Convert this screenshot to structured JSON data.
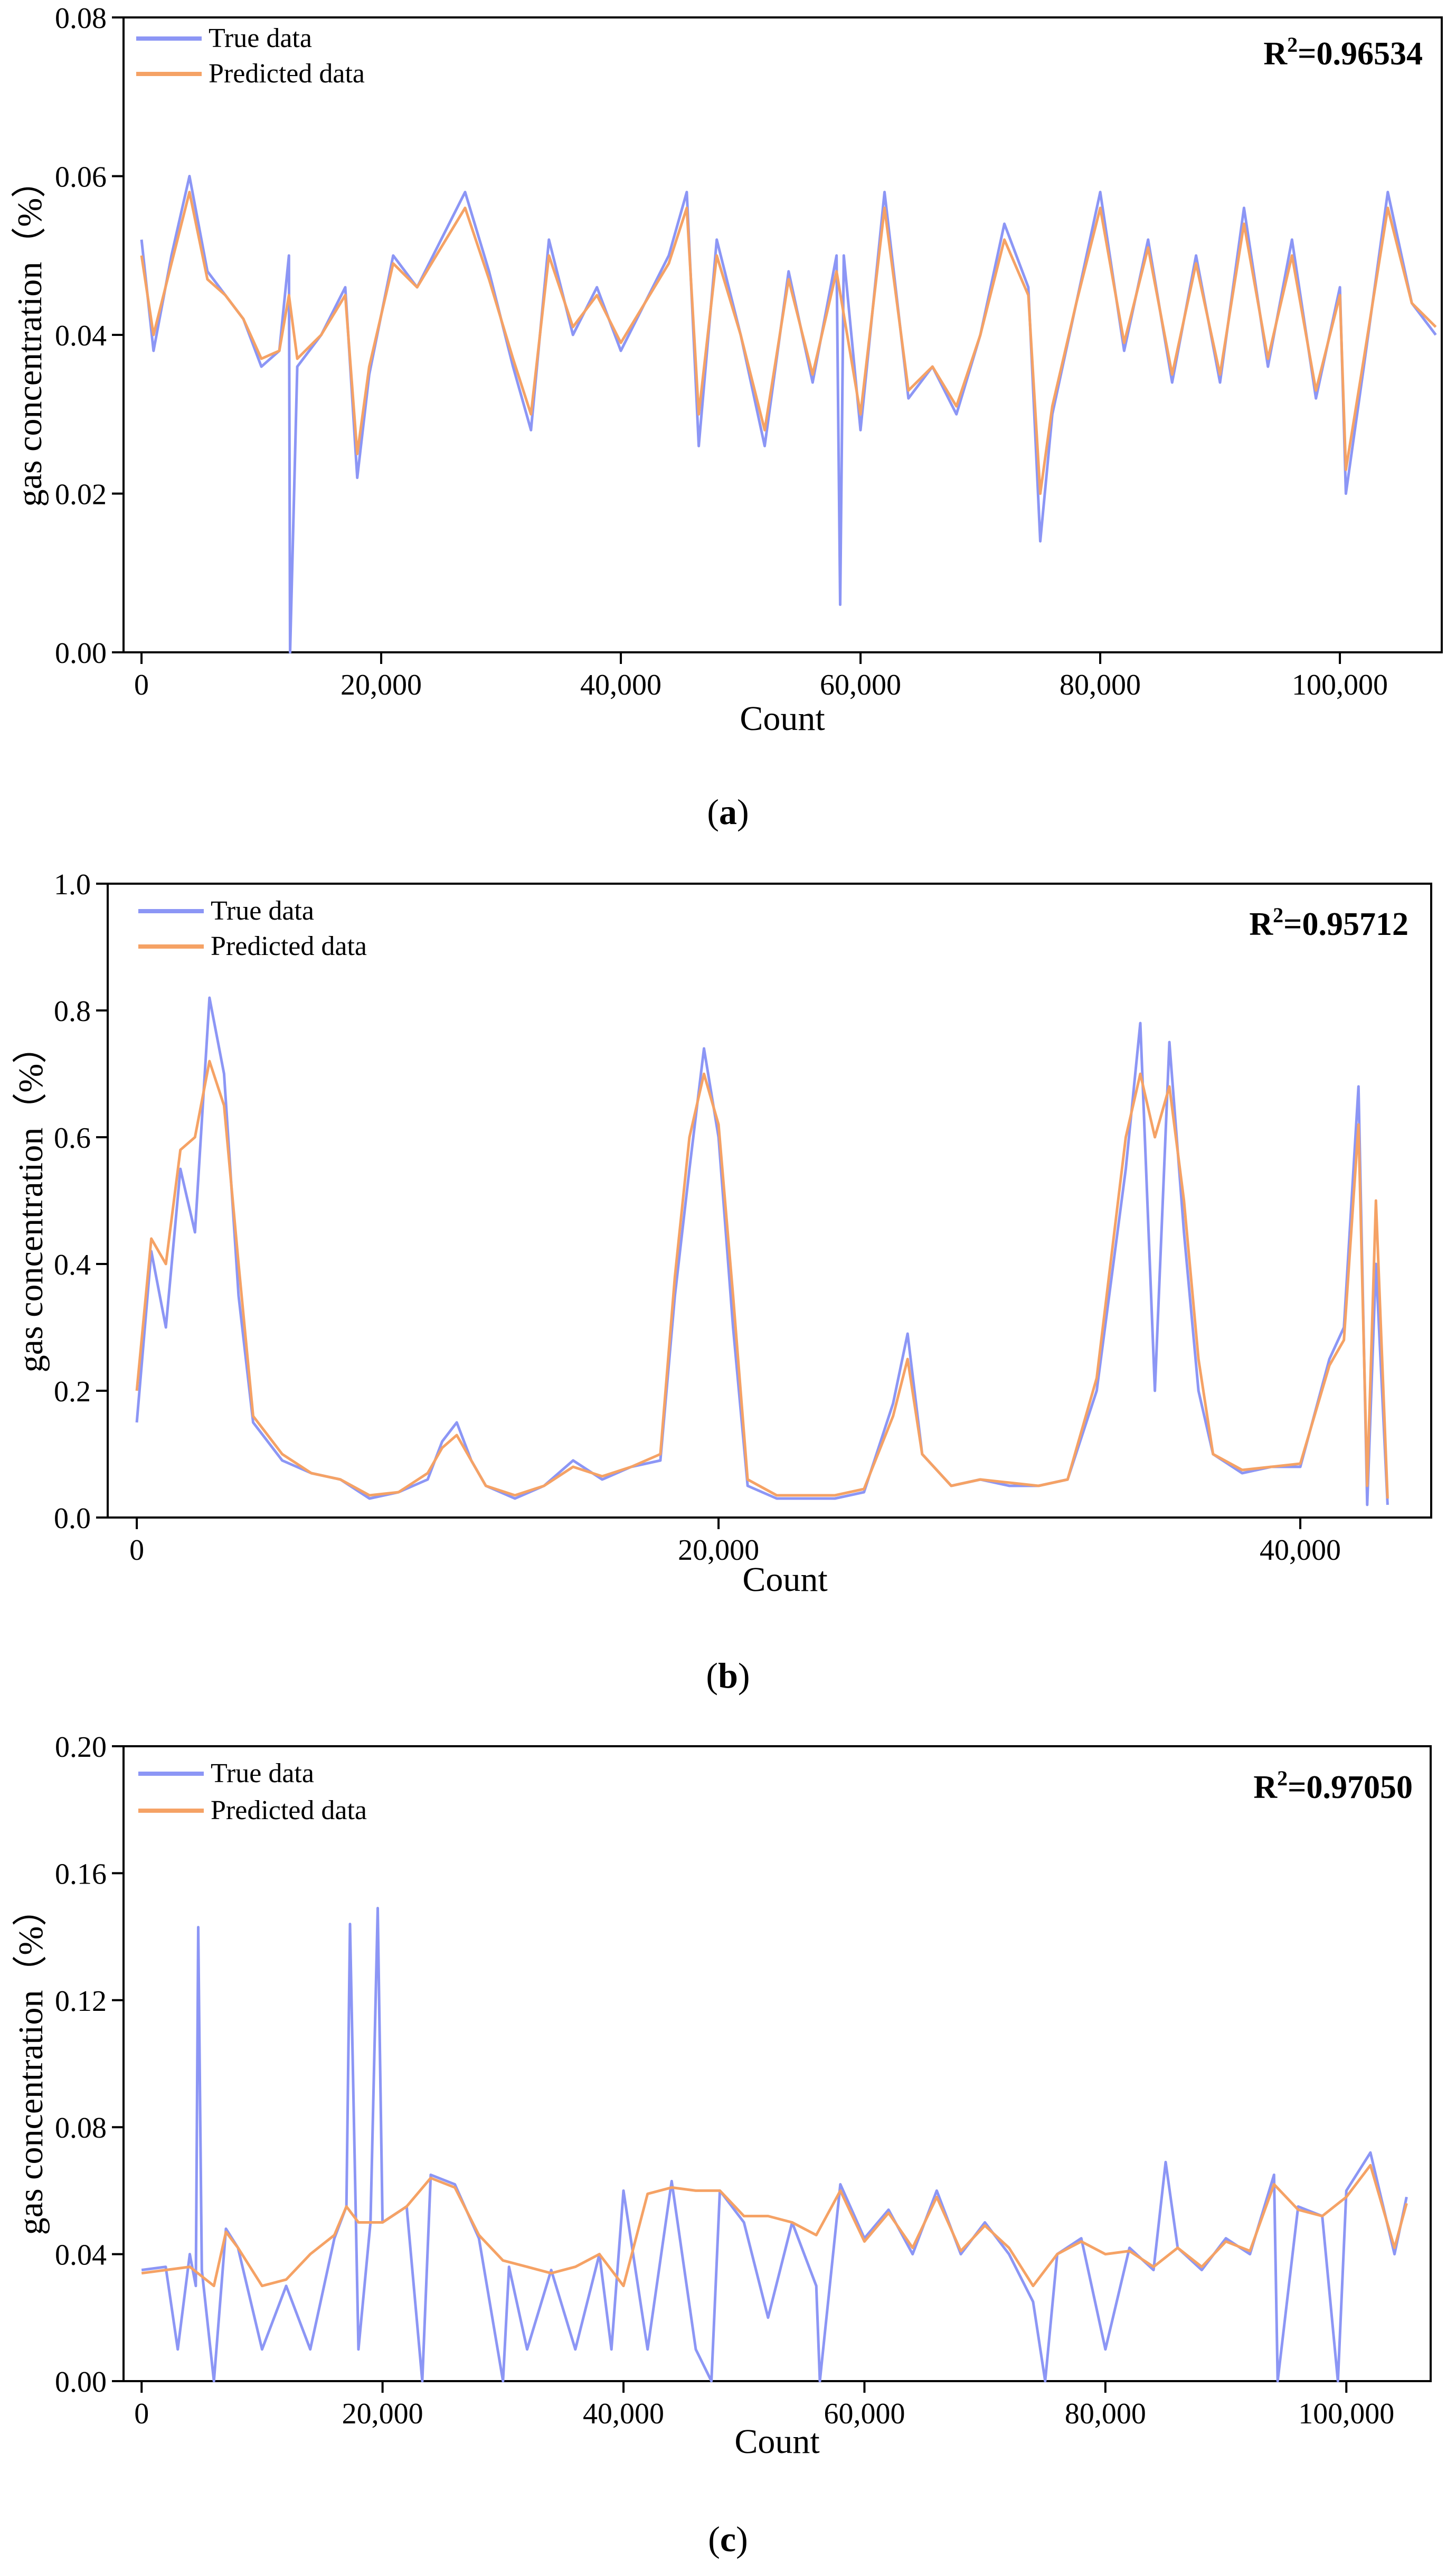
{
  "colors": {
    "true_series": "#8c96f5",
    "predicted_series": "#f5a265",
    "axis": "#000000"
  },
  "chart_data": [
    {
      "type": "line",
      "caption_letter": "a",
      "xlabel": "Count",
      "ylabel": "gas concentration（%）",
      "xlim": [
        -1500,
        108500
      ],
      "ylim": [
        0,
        0.08
      ],
      "xticks": [
        0,
        20000,
        40000,
        60000,
        80000,
        100000
      ],
      "xtick_labels": [
        "0",
        "20,000",
        "40,000",
        "60,000",
        "80,000",
        "100,000"
      ],
      "yticks": [
        0,
        0.02,
        0.04,
        0.06,
        0.08
      ],
      "ytick_labels": [
        "0.00",
        "0.02",
        "0.04",
        "0.06",
        "0.08"
      ],
      "legend": [
        "True data",
        "Predicted data"
      ],
      "legend_position": "top-left",
      "r2_label": "R",
      "r2_exp": "2",
      "r2_value": "=0.96534",
      "series": [
        {
          "name": "True data",
          "x": [
            0,
            1000,
            2500,
            4000,
            5500,
            7000,
            8500,
            10000,
            11500,
            12300,
            12400,
            13000,
            15000,
            17000,
            18000,
            19000,
            21000,
            23000,
            25000,
            27000,
            29000,
            31000,
            32500,
            34000,
            36000,
            38000,
            40000,
            42000,
            44000,
            45500,
            46500,
            48000,
            50000,
            52000,
            54000,
            56000,
            58000,
            58300,
            58600,
            60000,
            62000,
            64000,
            66000,
            68000,
            70000,
            72000,
            74000,
            75000,
            76000,
            78000,
            80000,
            82000,
            84000,
            86000,
            88000,
            90000,
            92000,
            94000,
            96000,
            98000,
            100000,
            100500,
            102000,
            104000,
            106000,
            108000
          ],
          "values": [
            0.052,
            0.038,
            0.05,
            0.06,
            0.048,
            0.045,
            0.042,
            0.036,
            0.038,
            0.05,
            0.0,
            0.036,
            0.04,
            0.046,
            0.022,
            0.035,
            0.05,
            0.046,
            0.052,
            0.058,
            0.048,
            0.036,
            0.028,
            0.052,
            0.04,
            0.046,
            0.038,
            0.044,
            0.05,
            0.058,
            0.026,
            0.052,
            0.04,
            0.026,
            0.048,
            0.034,
            0.05,
            0.006,
            0.05,
            0.028,
            0.058,
            0.032,
            0.036,
            0.03,
            0.04,
            0.054,
            0.046,
            0.014,
            0.03,
            0.044,
            0.058,
            0.038,
            0.052,
            0.034,
            0.05,
            0.034,
            0.056,
            0.036,
            0.052,
            0.032,
            0.046,
            0.02,
            0.036,
            0.058,
            0.044,
            0.04
          ]
        },
        {
          "name": "Predicted data",
          "x": [
            0,
            1000,
            2500,
            4000,
            5500,
            7000,
            8500,
            10000,
            11500,
            12300,
            13000,
            15000,
            17000,
            18000,
            19000,
            21000,
            23000,
            25000,
            27000,
            29000,
            31000,
            32500,
            34000,
            36000,
            38000,
            40000,
            42000,
            44000,
            45500,
            46500,
            48000,
            50000,
            52000,
            54000,
            56000,
            58000,
            60000,
            62000,
            64000,
            66000,
            68000,
            70000,
            72000,
            74000,
            75000,
            76000,
            78000,
            80000,
            82000,
            84000,
            86000,
            88000,
            90000,
            92000,
            94000,
            96000,
            98000,
            100000,
            100500,
            102000,
            104000,
            106000,
            108000
          ],
          "values": [
            0.05,
            0.04,
            0.049,
            0.058,
            0.047,
            0.045,
            0.042,
            0.037,
            0.038,
            0.045,
            0.037,
            0.04,
            0.045,
            0.025,
            0.036,
            0.049,
            0.046,
            0.051,
            0.056,
            0.047,
            0.037,
            0.03,
            0.05,
            0.041,
            0.045,
            0.039,
            0.044,
            0.049,
            0.056,
            0.03,
            0.05,
            0.04,
            0.028,
            0.047,
            0.035,
            0.048,
            0.03,
            0.056,
            0.033,
            0.036,
            0.031,
            0.04,
            0.052,
            0.045,
            0.02,
            0.031,
            0.044,
            0.056,
            0.039,
            0.051,
            0.035,
            0.049,
            0.035,
            0.054,
            0.037,
            0.05,
            0.033,
            0.045,
            0.023,
            0.037,
            0.056,
            0.044,
            0.041
          ]
        }
      ]
    },
    {
      "type": "line",
      "caption_letter": "b",
      "xlabel": "Count",
      "ylabel": "gas concentration（%）",
      "xlim": [
        -1000,
        44500
      ],
      "ylim": [
        0,
        1.0
      ],
      "xticks": [
        0,
        20000,
        40000
      ],
      "xtick_labels": [
        "0",
        "20,000",
        "40,000"
      ],
      "yticks": [
        0,
        0.2,
        0.4,
        0.6,
        0.8,
        1.0
      ],
      "ytick_labels": [
        "0.0",
        "0.2",
        "0.4",
        "0.6",
        "0.8",
        "1.0"
      ],
      "legend": [
        "True data",
        "Predicted data"
      ],
      "legend_position": "top-left",
      "r2_label": "R",
      "r2_exp": "2",
      "r2_value": "=0.95712",
      "series": [
        {
          "name": "True data",
          "x": [
            0,
            500,
            1000,
            1500,
            2000,
            2500,
            3000,
            3500,
            4000,
            5000,
            6000,
            7000,
            8000,
            9000,
            10000,
            10500,
            11000,
            11500,
            12000,
            13000,
            14000,
            15000,
            16000,
            17000,
            18000,
            18500,
            19000,
            19500,
            20000,
            20500,
            21000,
            22000,
            23000,
            24000,
            25000,
            26000,
            26500,
            27000,
            28000,
            29000,
            30000,
            31000,
            32000,
            33000,
            34000,
            34500,
            35000,
            35500,
            36000,
            36500,
            37000,
            38000,
            39000,
            40000,
            41000,
            41500,
            42000,
            42300,
            42600,
            43000
          ],
          "values": [
            0.15,
            0.42,
            0.3,
            0.55,
            0.45,
            0.82,
            0.7,
            0.35,
            0.15,
            0.09,
            0.07,
            0.06,
            0.03,
            0.04,
            0.06,
            0.12,
            0.15,
            0.09,
            0.05,
            0.03,
            0.05,
            0.09,
            0.06,
            0.08,
            0.09,
            0.35,
            0.55,
            0.74,
            0.6,
            0.3,
            0.05,
            0.03,
            0.03,
            0.03,
            0.04,
            0.18,
            0.29,
            0.1,
            0.05,
            0.06,
            0.05,
            0.05,
            0.06,
            0.2,
            0.55,
            0.78,
            0.2,
            0.75,
            0.45,
            0.2,
            0.1,
            0.07,
            0.08,
            0.08,
            0.25,
            0.3,
            0.68,
            0.02,
            0.4,
            0.02
          ]
        },
        {
          "name": "Predicted data",
          "x": [
            0,
            500,
            1000,
            1500,
            2000,
            2500,
            3000,
            3500,
            4000,
            5000,
            6000,
            7000,
            8000,
            9000,
            10000,
            10500,
            11000,
            11500,
            12000,
            13000,
            14000,
            15000,
            16000,
            17000,
            18000,
            18500,
            19000,
            19500,
            20000,
            20500,
            21000,
            22000,
            23000,
            24000,
            25000,
            26000,
            26500,
            27000,
            28000,
            29000,
            30000,
            31000,
            32000,
            33000,
            34000,
            34500,
            35000,
            35500,
            36000,
            36500,
            37000,
            38000,
            39000,
            40000,
            41000,
            41500,
            42000,
            42300,
            42600,
            43000
          ],
          "values": [
            0.2,
            0.44,
            0.4,
            0.58,
            0.6,
            0.72,
            0.65,
            0.4,
            0.16,
            0.1,
            0.07,
            0.06,
            0.035,
            0.04,
            0.07,
            0.11,
            0.13,
            0.09,
            0.05,
            0.035,
            0.05,
            0.08,
            0.065,
            0.08,
            0.1,
            0.38,
            0.6,
            0.7,
            0.62,
            0.35,
            0.06,
            0.035,
            0.035,
            0.035,
            0.045,
            0.16,
            0.25,
            0.1,
            0.05,
            0.06,
            0.055,
            0.05,
            0.06,
            0.22,
            0.6,
            0.7,
            0.6,
            0.68,
            0.5,
            0.25,
            0.1,
            0.075,
            0.08,
            0.085,
            0.24,
            0.28,
            0.62,
            0.05,
            0.5,
            0.03
          ]
        }
      ]
    },
    {
      "type": "line",
      "caption_letter": "c",
      "xlabel": "Count",
      "ylabel": "gas concentration（%）",
      "xlim": [
        -1500,
        107000
      ],
      "ylim": [
        0,
        0.2
      ],
      "xticks": [
        0,
        20000,
        40000,
        60000,
        80000,
        100000
      ],
      "xtick_labels": [
        "0",
        "20,000",
        "40,000",
        "60,000",
        "80,000",
        "100,000"
      ],
      "yticks": [
        0,
        0.04,
        0.08,
        0.12,
        0.16,
        0.2
      ],
      "ytick_labels": [
        "0.00",
        "0.04",
        "0.08",
        "0.12",
        "0.16",
        "0.20"
      ],
      "legend": [
        "True data",
        "Predicted data"
      ],
      "legend_position": "top-left",
      "r2_label": "R",
      "r2_exp": "2",
      "r2_value": "=0.97050",
      "series": [
        {
          "name": "True data",
          "x": [
            0,
            2000,
            3000,
            4000,
            4500,
            4700,
            5000,
            6000,
            7000,
            8000,
            10000,
            12000,
            14000,
            16000,
            17000,
            17300,
            18000,
            19000,
            19600,
            20000,
            22000,
            23300,
            24000,
            26000,
            28000,
            30000,
            30500,
            32000,
            34000,
            36000,
            38000,
            39000,
            40000,
            42000,
            44000,
            46000,
            47300,
            48000,
            50000,
            52000,
            54000,
            56000,
            56300,
            58000,
            60000,
            62000,
            64000,
            66000,
            68000,
            70000,
            72000,
            74000,
            75000,
            76000,
            78000,
            80000,
            82000,
            84000,
            85000,
            86000,
            88000,
            90000,
            92000,
            94000,
            94300,
            96000,
            98000,
            99300,
            100000,
            102000,
            104000,
            105000
          ],
          "values": [
            0.035,
            0.036,
            0.01,
            0.04,
            0.03,
            0.143,
            0.035,
            0.0,
            0.048,
            0.042,
            0.01,
            0.03,
            0.01,
            0.045,
            0.055,
            0.144,
            0.01,
            0.05,
            0.149,
            0.05,
            0.055,
            0.0,
            0.065,
            0.062,
            0.045,
            0.0,
            0.036,
            0.01,
            0.035,
            0.01,
            0.04,
            0.01,
            0.06,
            0.01,
            0.063,
            0.01,
            0.0,
            0.06,
            0.05,
            0.02,
            0.05,
            0.03,
            0.0,
            0.062,
            0.045,
            0.054,
            0.04,
            0.06,
            0.04,
            0.05,
            0.04,
            0.025,
            0.0,
            0.04,
            0.045,
            0.01,
            0.042,
            0.035,
            0.069,
            0.042,
            0.035,
            0.045,
            0.04,
            0.065,
            0.0,
            0.055,
            0.052,
            0.0,
            0.06,
            0.072,
            0.04,
            0.058
          ]
        },
        {
          "name": "Predicted data",
          "x": [
            0,
            2000,
            4000,
            6000,
            7000,
            8000,
            10000,
            12000,
            14000,
            16000,
            17000,
            18000,
            20000,
            22000,
            24000,
            26000,
            28000,
            30000,
            32000,
            34000,
            36000,
            38000,
            40000,
            42000,
            44000,
            46000,
            48000,
            50000,
            52000,
            54000,
            56000,
            58000,
            60000,
            62000,
            64000,
            66000,
            68000,
            70000,
            72000,
            74000,
            76000,
            78000,
            80000,
            82000,
            84000,
            86000,
            88000,
            90000,
            92000,
            94000,
            96000,
            98000,
            100000,
            102000,
            104000,
            105000
          ],
          "values": [
            0.034,
            0.035,
            0.036,
            0.03,
            0.047,
            0.042,
            0.03,
            0.032,
            0.04,
            0.046,
            0.055,
            0.05,
            0.05,
            0.055,
            0.064,
            0.061,
            0.046,
            0.038,
            0.036,
            0.034,
            0.036,
            0.04,
            0.03,
            0.059,
            0.061,
            0.06,
            0.06,
            0.052,
            0.052,
            0.05,
            0.046,
            0.06,
            0.044,
            0.053,
            0.042,
            0.058,
            0.041,
            0.049,
            0.042,
            0.03,
            0.04,
            0.044,
            0.04,
            0.041,
            0.036,
            0.042,
            0.036,
            0.044,
            0.041,
            0.062,
            0.054,
            0.052,
            0.058,
            0.068,
            0.042,
            0.056
          ]
        }
      ]
    }
  ]
}
